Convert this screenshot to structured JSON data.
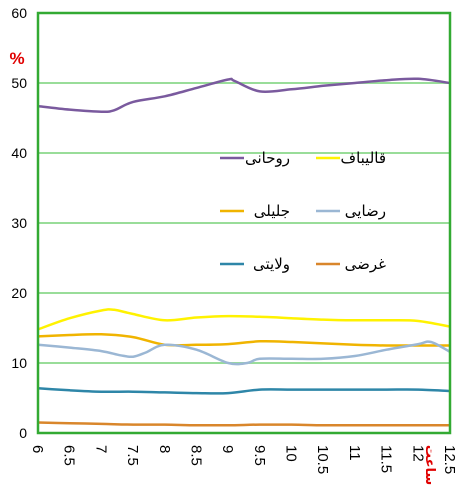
{
  "chart_data": {
    "type": "line",
    "ylabel": "%",
    "xunit_label": "ساعت",
    "ylim": [
      0,
      60
    ],
    "yticks": [
      "0",
      "10",
      "20",
      "30",
      "40",
      "50",
      "60"
    ],
    "xlim": [
      6,
      12.5
    ],
    "xticks": [
      "6",
      "6.5",
      "7",
      "7.5",
      "8",
      "8.5",
      "9",
      "9.5",
      "10",
      "10.5",
      "11",
      "11.5",
      "12",
      "12.5"
    ],
    "grid": true,
    "frame_color": "#33AA33",
    "grid_color": "#99DD99",
    "legend": "inside-top",
    "series": [
      {
        "name": "روحانی",
        "color": "#7A5A9E",
        "x": [
          6,
          6.5,
          7,
          7.2,
          7.5,
          8,
          8.5,
          9,
          9.1,
          9.5,
          10,
          10.5,
          11,
          11.5,
          12,
          12.5
        ],
        "y": [
          46.7,
          46.2,
          45.9,
          46.1,
          47.3,
          48.1,
          49.3,
          50.5,
          50.3,
          48.8,
          49.1,
          49.6,
          50.0,
          50.4,
          50.6,
          50.0
        ]
      },
      {
        "name": "قالیباف",
        "color": "#FFF200",
        "x": [
          6,
          6.5,
          7,
          7.2,
          7.5,
          8,
          8.5,
          9,
          9.5,
          10,
          10.5,
          11,
          11.5,
          12,
          12.5
        ],
        "y": [
          14.8,
          16.4,
          17.5,
          17.6,
          17.0,
          16.1,
          16.5,
          16.7,
          16.6,
          16.4,
          16.2,
          16.1,
          16.1,
          16.0,
          15.2
        ]
      },
      {
        "name": "جلیلی",
        "color": "#F0B400",
        "x": [
          6,
          6.5,
          7,
          7.5,
          8,
          8.5,
          9,
          9.5,
          10,
          10.5,
          11,
          11.5,
          12,
          12.5
        ],
        "y": [
          13.8,
          14.0,
          14.1,
          13.7,
          12.6,
          12.6,
          12.7,
          13.1,
          13.0,
          12.8,
          12.6,
          12.5,
          12.5,
          12.5
        ]
      },
      {
        "name": "رضایی",
        "color": "#9BB7D4",
        "x": [
          6,
          6.5,
          7,
          7.3,
          7.5,
          7.7,
          8,
          8.5,
          9,
          9.3,
          9.5,
          10,
          10.5,
          11,
          11.5,
          12,
          12.2,
          12.5
        ],
        "y": [
          12.6,
          12.2,
          11.7,
          11.1,
          10.9,
          11.5,
          12.6,
          11.9,
          10.0,
          10.0,
          10.6,
          10.6,
          10.6,
          11.0,
          11.9,
          12.7,
          13.0,
          11.6
        ]
      },
      {
        "name": "ولایتی",
        "color": "#2E86A8",
        "x": [
          6,
          6.5,
          7,
          7.5,
          8,
          8.5,
          9,
          9.5,
          10,
          10.5,
          11,
          11.5,
          12,
          12.5
        ],
        "y": [
          6.4,
          6.1,
          5.9,
          5.9,
          5.8,
          5.7,
          5.7,
          6.2,
          6.2,
          6.2,
          6.2,
          6.2,
          6.2,
          6.0
        ]
      },
      {
        "name": "غرضی",
        "color": "#D9862B",
        "x": [
          6,
          6.5,
          7,
          7.5,
          8,
          8.5,
          9,
          9.5,
          10,
          10.5,
          11,
          11.5,
          12,
          12.5
        ],
        "y": [
          1.5,
          1.4,
          1.3,
          1.2,
          1.2,
          1.1,
          1.1,
          1.2,
          1.2,
          1.1,
          1.1,
          1.1,
          1.1,
          1.1
        ]
      }
    ]
  }
}
